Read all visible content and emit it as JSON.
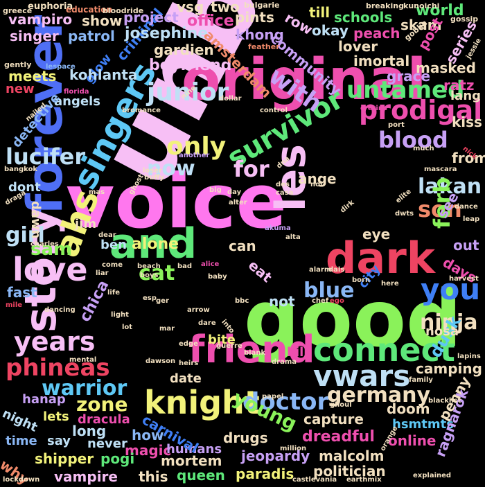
{
  "background": "#000000",
  "words": [
    {
      "text": "unbag",
      "color": "#f7bff5"
    },
    {
      "text": "voice",
      "color": "#ff77ee"
    },
    {
      "text": "good",
      "color": "#8af25a"
    },
    {
      "text": "original",
      "color": "#ee4fae"
    },
    {
      "text": "forever",
      "color": "#4f6ff5"
    },
    {
      "text": "story",
      "color": "#f7bff5"
    },
    {
      "text": "les",
      "color": "#f7bff5"
    },
    {
      "text": "and",
      "color": "#5ee87a"
    },
    {
      "text": "dark",
      "color": "#ee4462"
    },
    {
      "text": "friend",
      "color": "#ee4fae"
    },
    {
      "text": "singers",
      "color": "#5ec8f5"
    },
    {
      "text": "ahs",
      "color": "#f2f27a"
    },
    {
      "text": "love",
      "color": "#f7bff5"
    },
    {
      "text": "knight",
      "color": "#f2f27a"
    },
    {
      "text": "connect",
      "color": "#5ee87a"
    },
    {
      "text": "survivor",
      "color": "#5ee87a"
    },
    {
      "text": "years",
      "color": "#f7bff5"
    },
    {
      "text": "you",
      "color": "#3f7ff5"
    },
    {
      "text": "prodigal",
      "color": "#ee4fae"
    },
    {
      "text": "vwars",
      "color": "#bfe0f5"
    },
    {
      "text": "untamed",
      "color": "#5ee87a"
    },
    {
      "text": "only",
      "color": "#f2f27a"
    },
    {
      "text": "junior",
      "color": "#bfe0f5"
    },
    {
      "text": "lucifer",
      "color": "#bfe0f5"
    },
    {
      "text": "for",
      "color": "#f7bff5"
    },
    {
      "text": "now",
      "color": "#bfe0f5"
    },
    {
      "text": "blood",
      "color": "#c7a0f5"
    },
    {
      "text": "ninja",
      "color": "#f2e0c0"
    },
    {
      "text": "doctor",
      "color": "#8ab7f5"
    },
    {
      "text": "germany",
      "color": "#f2e0c0"
    },
    {
      "text": "phineas",
      "color": "#ee4462"
    },
    {
      "text": "warrior",
      "color": "#5ec8f5"
    },
    {
      "text": "zone",
      "color": "#f2f27a"
    },
    {
      "text": "young",
      "color": "#8af25a"
    },
    {
      "text": "with",
      "color": "#c7a0f5"
    },
    {
      "text": "lakan",
      "color": "#bfe0f5"
    },
    {
      "text": "son",
      "color": "#f08a6a"
    },
    {
      "text": "ferb",
      "color": "#8af25a"
    },
    {
      "text": "girl",
      "color": "#bfe0f5"
    },
    {
      "text": "sam",
      "color": "#8af25a"
    },
    {
      "text": "cat",
      "color": "#8af25a"
    },
    {
      "text": "blue",
      "color": "#8ab7f5"
    },
    {
      "text": "alone",
      "color": "#f2f27a"
    },
    {
      "text": "eye",
      "color": "#f2e0c0"
    },
    {
      "text": "fast",
      "color": "#8ab7f5"
    },
    {
      "text": "chica",
      "color": "#c7a0f5"
    },
    {
      "text": "not",
      "color": "#bfe0f5"
    },
    {
      "text": "can",
      "color": "#f2e0c0"
    },
    {
      "text": "eat",
      "color": "#f7bff5"
    },
    {
      "text": "bite",
      "color": "#f2f27a"
    },
    {
      "text": "kill",
      "color": "#ee4fae"
    },
    {
      "text": "dusk",
      "color": "#5ec8f5"
    },
    {
      "text": "nosa",
      "color": "#f2e0c0"
    },
    {
      "text": "camping",
      "color": "#f2e0c0"
    },
    {
      "text": "capture",
      "color": "#f2e0c0"
    },
    {
      "text": "doom",
      "color": "#f2e0c0"
    },
    {
      "text": "penny",
      "color": "#f2e0c0"
    },
    {
      "text": "hsmtmts",
      "color": "#5ec8f5"
    },
    {
      "text": "dreadful",
      "color": "#ee4fae"
    },
    {
      "text": "online",
      "color": "#ee4fae"
    },
    {
      "text": "ragnarok",
      "color": "#c7a0f5"
    },
    {
      "text": "politician",
      "color": "#f2e0c0"
    },
    {
      "text": "malcolm",
      "color": "#f2e0c0"
    },
    {
      "text": "jeopardy",
      "color": "#c7a0f5"
    },
    {
      "text": "drugs",
      "color": "#f2e0c0"
    },
    {
      "text": "paradis",
      "color": "#f2f27a"
    },
    {
      "text": "queen",
      "color": "#5ee87a"
    },
    {
      "text": "mortem",
      "color": "#f2e0c0"
    },
    {
      "text": "this",
      "color": "#f2e0c0"
    },
    {
      "text": "magic",
      "color": "#ee4fae"
    },
    {
      "text": "humans",
      "color": "#c7a0f5"
    },
    {
      "text": "how",
      "color": "#8ab7f5"
    },
    {
      "text": "carnival",
      "color": "#3f7ff5"
    },
    {
      "text": "dracula",
      "color": "#ee4fae"
    },
    {
      "text": "long",
      "color": "#bfe0f5"
    },
    {
      "text": "never",
      "color": "#bfe0f5"
    },
    {
      "text": "pogi",
      "color": "#5ee87a"
    },
    {
      "text": "vampire",
      "color": "#f7bff5"
    },
    {
      "text": "shipper",
      "color": "#f2f27a"
    },
    {
      "text": "say",
      "color": "#bfe0f5"
    },
    {
      "text": "time",
      "color": "#8ab7f5"
    },
    {
      "text": "why",
      "color": "#f08a6a"
    },
    {
      "text": "lets",
      "color": "#f2f27a"
    },
    {
      "text": "night",
      "color": "#bfe0f5"
    },
    {
      "text": "hanap",
      "color": "#c7a0f5"
    },
    {
      "text": "date",
      "color": "#f2e0c0"
    },
    {
      "text": "ben",
      "color": "#bfe0f5"
    },
    {
      "text": "jim",
      "color": "#f2e0c0"
    },
    {
      "text": "dawn",
      "color": "#f2e0c0"
    },
    {
      "text": "dont",
      "color": "#bfe0f5"
    },
    {
      "text": "angels",
      "color": "#bfe0f5"
    },
    {
      "text": "detective",
      "color": "#8ab7f5"
    },
    {
      "text": "meets",
      "color": "#f2f27a"
    },
    {
      "text": "new",
      "color": "#ee4462"
    },
    {
      "text": "criminal",
      "color": "#3f7ff5"
    },
    {
      "text": "glow",
      "color": "#3f7ff5"
    },
    {
      "text": "kohlanta",
      "color": "#bfe0f5"
    },
    {
      "text": "boyfriend",
      "color": "#f7bff5"
    },
    {
      "text": "gardien",
      "color": "#f2e0c0"
    },
    {
      "text": "josephine",
      "color": "#bfe0f5"
    },
    {
      "text": "patrol",
      "color": "#8ab7f5"
    },
    {
      "text": "singer",
      "color": "#f7bff5"
    },
    {
      "text": "vampiro",
      "color": "#f7bff5"
    },
    {
      "text": "show",
      "color": "#f2e0c0"
    },
    {
      "text": "project",
      "color": "#c7a0f5"
    },
    {
      "text": "office",
      "color": "#ee4fae"
    },
    {
      "text": "vsg",
      "color": "#f2e0c0"
    },
    {
      "text": "two",
      "color": "#f2e0c0"
    },
    {
      "text": "pints",
      "color": "#f2e0c0"
    },
    {
      "text": "khong",
      "color": "#c7a0f5"
    },
    {
      "text": "amsterdam",
      "color": "#f08a6a"
    },
    {
      "text": "community",
      "color": "#c7a0f5"
    },
    {
      "text": "row",
      "color": "#f7bff5"
    },
    {
      "text": "till",
      "color": "#f2f27a"
    },
    {
      "text": "schools",
      "color": "#5ee87a"
    },
    {
      "text": "okay",
      "color": "#bfe0f5"
    },
    {
      "text": "peach",
      "color": "#ee4fae"
    },
    {
      "text": "skam",
      "color": "#f2e0c0"
    },
    {
      "text": "world",
      "color": "#5ee87a"
    },
    {
      "text": "post",
      "color": "#ee4fae"
    },
    {
      "text": "series",
      "color": "#f7bff5"
    },
    {
      "text": "lover",
      "color": "#f2e0c0"
    },
    {
      "text": "imortal",
      "color": "#f2e0c0"
    },
    {
      "text": "grace",
      "color": "#c7a0f5"
    },
    {
      "text": "masked",
      "color": "#f2e0c0"
    },
    {
      "text": "ratz",
      "color": "#ee4fae"
    },
    {
      "text": "lang",
      "color": "#f2e0c0"
    },
    {
      "text": "kiss",
      "color": "#f2e0c0"
    },
    {
      "text": "from",
      "color": "#f2e0c0"
    },
    {
      "text": "ange",
      "color": "#f2e0c0"
    },
    {
      "text": "see",
      "color": "#c7a0f5"
    },
    {
      "text": "out",
      "color": "#c7a0f5"
    },
    {
      "text": "days",
      "color": "#ee4fae"
    },
    {
      "text": "city",
      "color": "#3f7ff5"
    },
    {
      "text": "euphoria",
      "color": "#f2e0c0"
    },
    {
      "text": "education",
      "color": "#f08a6a"
    },
    {
      "text": "greece",
      "color": "#f2e0c0"
    },
    {
      "text": "bloodride",
      "color": "#f2e0c0"
    },
    {
      "text": "bulgarie",
      "color": "#f2e0c0"
    },
    {
      "text": "breaking",
      "color": "#f2e0c0"
    },
    {
      "text": "kunoichi",
      "color": "#f2e0c0"
    },
    {
      "text": "gossip",
      "color": "#f2e0c0"
    },
    {
      "text": "goblin",
      "color": "#f2e0c0"
    },
    {
      "text": "feather",
      "color": "#f08a6a"
    },
    {
      "text": "jessie",
      "color": "#f2e0c0"
    },
    {
      "text": "gently",
      "color": "#f2e0c0"
    },
    {
      "text": "lespace",
      "color": "#8ab7f5"
    },
    {
      "text": "florida",
      "color": "#ee4fae"
    },
    {
      "text": "nailed",
      "color": "#f2e0c0"
    },
    {
      "text": "bromance",
      "color": "#f2e0c0"
    },
    {
      "text": "nine",
      "color": "#f2e0c0"
    },
    {
      "text": "dollar",
      "color": "#f2e0c0"
    },
    {
      "text": "control",
      "color": "#f2e0c0"
    },
    {
      "text": "cretins",
      "color": "#ee4fae"
    },
    {
      "text": "port",
      "color": "#f2e0c0"
    },
    {
      "text": "much",
      "color": "#f2e0c0"
    },
    {
      "text": "mascara",
      "color": "#f2e0c0"
    },
    {
      "text": "nick",
      "color": "#ee4462"
    },
    {
      "text": "another",
      "color": "#c7a0f5"
    },
    {
      "text": "loser",
      "color": "#f2e0c0"
    },
    {
      "text": "buffy",
      "color": "#f2e0c0"
    },
    {
      "text": "ghost",
      "color": "#f2e0c0"
    },
    {
      "text": "bangkok",
      "color": "#f2e0c0"
    },
    {
      "text": "draga",
      "color": "#f2e0c0"
    },
    {
      "text": "big",
      "color": "#f2e0c0"
    },
    {
      "text": "dna",
      "color": "#f2e0c0"
    },
    {
      "text": "des",
      "color": "#f2e0c0"
    },
    {
      "text": "noi",
      "color": "#f2e0c0"
    },
    {
      "text": "casa",
      "color": "#f2e0c0"
    },
    {
      "text": "mas",
      "color": "#f2e0c0"
    },
    {
      "text": "day",
      "color": "#f2e0c0"
    },
    {
      "text": "alter",
      "color": "#f2e0c0"
    },
    {
      "text": "dirk",
      "color": "#f2e0c0"
    },
    {
      "text": "elite",
      "color": "#f2e0c0"
    },
    {
      "text": "dwts",
      "color": "#f2e0c0"
    },
    {
      "text": "dance",
      "color": "#f2e0c0"
    },
    {
      "text": "leap",
      "color": "#f2e0c0"
    },
    {
      "text": "charles",
      "color": "#f2e0c0"
    },
    {
      "text": "dear",
      "color": "#f2e0c0"
    },
    {
      "text": "akuma",
      "color": "#c7a0f5"
    },
    {
      "text": "alta",
      "color": "#f2e0c0"
    },
    {
      "text": "come",
      "color": "#f2e0c0"
    },
    {
      "text": "beach",
      "color": "#f2e0c0"
    },
    {
      "text": "bad",
      "color": "#f2e0c0"
    },
    {
      "text": "alice",
      "color": "#ee4fae"
    },
    {
      "text": "liar",
      "color": "#f2e0c0"
    },
    {
      "text": "boys",
      "color": "#f2e0c0"
    },
    {
      "text": "baby",
      "color": "#f2e0c0"
    },
    {
      "text": "alarm",
      "color": "#f2e0c0"
    },
    {
      "text": "dals",
      "color": "#f2e0c0"
    },
    {
      "text": "born",
      "color": "#f2e0c0"
    },
    {
      "text": "here",
      "color": "#f2e0c0"
    },
    {
      "text": "harvest",
      "color": "#f2e0c0"
    },
    {
      "text": "life",
      "color": "#f2e0c0"
    },
    {
      "text": "esp",
      "color": "#f2e0c0"
    },
    {
      "text": "bbc",
      "color": "#f2e0c0"
    },
    {
      "text": "chef",
      "color": "#f2e0c0"
    },
    {
      "text": "ego",
      "color": "#ee4462"
    },
    {
      "text": "arrow",
      "color": "#f2e0c0"
    },
    {
      "text": "mile",
      "color": "#ee4462"
    },
    {
      "text": "dancing",
      "color": "#f2e0c0"
    },
    {
      "text": "light",
      "color": "#f2e0c0"
    },
    {
      "text": "ger",
      "color": "#f2e0c0"
    },
    {
      "text": "lot",
      "color": "#f2e0c0"
    },
    {
      "text": "mar",
      "color": "#f2e0c0"
    },
    {
      "text": "dare",
      "color": "#f2e0c0"
    },
    {
      "text": "into",
      "color": "#f2e0c0"
    },
    {
      "text": "edge",
      "color": "#f2e0c0"
    },
    {
      "text": "guerre",
      "color": "#f2e0c0"
    },
    {
      "text": "blank",
      "color": "#f2e0c0"
    },
    {
      "text": "lapins",
      "color": "#f2e0c0"
    },
    {
      "text": "mental",
      "color": "#f2e0c0"
    },
    {
      "text": "dawson",
      "color": "#f2e0c0"
    },
    {
      "text": "heirs",
      "color": "#f2e0c0"
    },
    {
      "text": "drama",
      "color": "#f2e0c0"
    },
    {
      "text": "family",
      "color": "#f2e0c0"
    },
    {
      "text": "papel",
      "color": "#f2e0c0"
    },
    {
      "text": "ghoul",
      "color": "#f2e0c0"
    },
    {
      "text": "blacklist",
      "color": "#f2e0c0"
    },
    {
      "text": "million",
      "color": "#f2e0c0"
    },
    {
      "text": "orange",
      "color": "#f2e0c0"
    },
    {
      "text": "lockdown",
      "color": "#f2e0c0"
    },
    {
      "text": "castlevania",
      "color": "#f2e0c0"
    },
    {
      "text": "earthmix",
      "color": "#f2e0c0"
    },
    {
      "text": "explained",
      "color": "#f2e0c0"
    }
  ]
}
